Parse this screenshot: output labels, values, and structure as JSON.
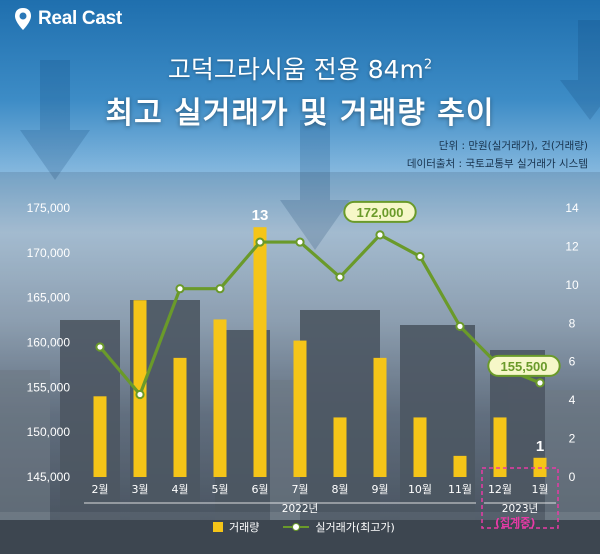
{
  "brand": {
    "name": "Real Cast"
  },
  "title": {
    "line1": "고덕그라시움 전용 84m",
    "line1_sup": "2",
    "line2": "최고 실거래가 및 거래량 추이"
  },
  "notes": {
    "unit": "단위 : 만원(실거래가), 건(거래량)",
    "source": "데이터출처 : 국토교통부 실거래가 시스템"
  },
  "colors": {
    "bar": "#f5c518",
    "line": "#6a9a2a",
    "highlight": "#e83aa6"
  },
  "chart_data": {
    "type": "bar+line",
    "categories": [
      "2월",
      "3월",
      "4월",
      "5월",
      "6월",
      "7월",
      "8월",
      "9월",
      "10월",
      "11월",
      "12월",
      "1월"
    ],
    "year_labels": [
      {
        "text": "2022년",
        "under_categories": [
          "2월",
          "11월"
        ]
      },
      {
        "text": "2023년",
        "under_categories": [
          "12월",
          "1월"
        ]
      }
    ],
    "series": [
      {
        "name": "거래량",
        "type": "bar",
        "axis": "right",
        "values": [
          4.2,
          9.2,
          6.2,
          8.2,
          13,
          7.1,
          3.1,
          6.2,
          3.1,
          1.1,
          3.1,
          1
        ]
      },
      {
        "name": "실거래가(최고가)",
        "type": "line",
        "axis": "left",
        "values": [
          159500,
          154200,
          166000,
          166000,
          171200,
          171200,
          167300,
          172000,
          169600,
          161800,
          157300,
          155500
        ]
      }
    ],
    "data_labels": [
      {
        "series": "거래량",
        "category": "6월",
        "text": "13"
      },
      {
        "series": "거래량",
        "category": "1월",
        "text": "1"
      },
      {
        "series": "실거래가(최고가)",
        "category": "9월",
        "text": "172,000"
      },
      {
        "series": "실거래가(최고가)",
        "category": "1월",
        "text": "155,500"
      }
    ],
    "y_left": {
      "ticks": [
        "145,000",
        "150,000",
        "155,000",
        "160,000",
        "165,000",
        "170,000",
        "175,000"
      ],
      "range": [
        145000,
        175000
      ]
    },
    "y_right": {
      "ticks": [
        "0",
        "2",
        "4",
        "6",
        "8",
        "10",
        "12",
        "14"
      ],
      "range": [
        0,
        14
      ]
    },
    "legend": {
      "items": [
        "거래량",
        "실거래가(최고가)"
      ],
      "position": "bottom"
    },
    "annotation": {
      "text": "(집계중)",
      "covers": [
        "12월",
        "1월"
      ]
    },
    "grid": false
  }
}
